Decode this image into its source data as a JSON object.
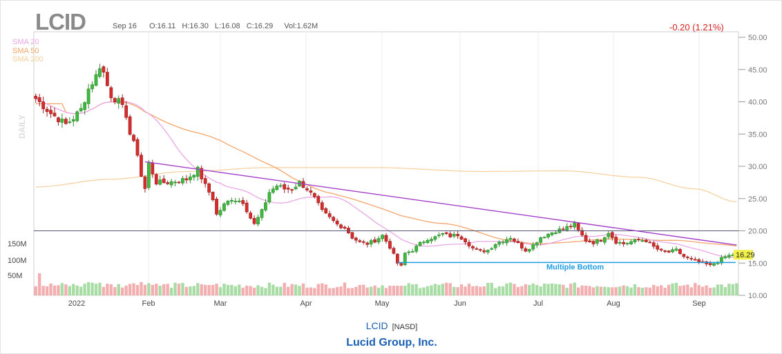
{
  "header": {
    "symbol": "LCID",
    "date": "Sep 16",
    "open": "O:16.11",
    "high": "H:16.30",
    "low": "L:16.08",
    "close": "C:16.29",
    "volume": "Vol:1.62M",
    "change": "-0.20 (1.21%)",
    "period_label": "DAILY"
  },
  "legend": [
    {
      "label": "SMA 20",
      "color": "#e9a6e6"
    },
    {
      "label": "SMA 50",
      "color": "#f4a46a"
    },
    {
      "label": "SMA 200",
      "color": "#f5cf9a"
    }
  ],
  "colors": {
    "up": "#3fb83f",
    "down": "#d62c2c",
    "trend": "#a23fc9",
    "support": "#1e9de3",
    "resistance": "#555577",
    "price_tag": "#f2f24a"
  },
  "chart_data": {
    "type": "candlestick",
    "y_ticks": [
      "50.00",
      "45.00",
      "40.00",
      "35.00",
      "30.00",
      "25.00",
      "20.00",
      "15.00",
      "10.00"
    ],
    "ylim": [
      10,
      50
    ],
    "x_ticks": [
      "2022",
      "Feb",
      "Mar",
      "Apr",
      "May",
      "Jun",
      "Jul",
      "Aug",
      "Sep"
    ],
    "volume_ticks": [
      "150M",
      "100M",
      "50M"
    ],
    "last_price": "16.29",
    "annotation": "Multiple Bottom",
    "price_anchors": [
      [
        0,
        40.5
      ],
      [
        4,
        38.2
      ],
      [
        8,
        36.5
      ],
      [
        10,
        37.5
      ],
      [
        12,
        38.8
      ],
      [
        14,
        42
      ],
      [
        16,
        44
      ],
      [
        17,
        45.6
      ],
      [
        18,
        44.5
      ],
      [
        19,
        42.5
      ],
      [
        20,
        41
      ],
      [
        22,
        40
      ],
      [
        24,
        38
      ],
      [
        25,
        35
      ],
      [
        26,
        33.5
      ],
      [
        27,
        32
      ],
      [
        28,
        28.5
      ],
      [
        29,
        26.5
      ],
      [
        30,
        30.5
      ],
      [
        31,
        29
      ],
      [
        32,
        27.5
      ],
      [
        35,
        27.5
      ],
      [
        40,
        28
      ],
      [
        43,
        29.5
      ],
      [
        45,
        27
      ],
      [
        47,
        25
      ],
      [
        48,
        22.5
      ],
      [
        50,
        24
      ],
      [
        52,
        25
      ],
      [
        55,
        24.5
      ],
      [
        57,
        22
      ],
      [
        58,
        21
      ],
      [
        60,
        23
      ],
      [
        62,
        26
      ],
      [
        64,
        27
      ],
      [
        66,
        26.5
      ],
      [
        68,
        26.5
      ],
      [
        70,
        27.5
      ],
      [
        72,
        26.5
      ],
      [
        74,
        25
      ],
      [
        76,
        23
      ],
      [
        78,
        22
      ],
      [
        80,
        21
      ],
      [
        82,
        20.5
      ],
      [
        84,
        19
      ],
      [
        86,
        18.2
      ],
      [
        88,
        18
      ],
      [
        90,
        18.5
      ],
      [
        92,
        19.3
      ],
      [
        94,
        17.5
      ],
      [
        96,
        15
      ],
      [
        97,
        14.5
      ],
      [
        98,
        16.5
      ],
      [
        100,
        17
      ],
      [
        102,
        18
      ],
      [
        104,
        18.8
      ],
      [
        106,
        19
      ],
      [
        108,
        19.5
      ],
      [
        110,
        19.2
      ],
      [
        112,
        19.4
      ],
      [
        114,
        18.5
      ],
      [
        116,
        17.3
      ],
      [
        118,
        16.8
      ],
      [
        120,
        17
      ],
      [
        122,
        18
      ],
      [
        124,
        18.5
      ],
      [
        126,
        19
      ],
      [
        128,
        18
      ],
      [
        130,
        17
      ],
      [
        132,
        17.8
      ],
      [
        134,
        19
      ],
      [
        136,
        19.5
      ],
      [
        138,
        20
      ],
      [
        140,
        20.3
      ],
      [
        142,
        20.8
      ],
      [
        143,
        21
      ],
      [
        144,
        20
      ],
      [
        146,
        18.5
      ],
      [
        148,
        18.2
      ],
      [
        150,
        18.6
      ],
      [
        152,
        19.8
      ],
      [
        154,
        18.3
      ],
      [
        156,
        18
      ],
      [
        158,
        18.3
      ],
      [
        160,
        18.6
      ],
      [
        162,
        18.5
      ],
      [
        164,
        17.5
      ],
      [
        166,
        16.8
      ],
      [
        168,
        16.7
      ],
      [
        170,
        17
      ],
      [
        172,
        16
      ],
      [
        174,
        15.5
      ],
      [
        176,
        15.2
      ],
      [
        178,
        14.8
      ],
      [
        179,
        14.6
      ],
      [
        181,
        15.3
      ],
      [
        183,
        16
      ],
      [
        185,
        16.3
      ],
      [
        186,
        16.29
      ]
    ],
    "sma200_anchors": [
      [
        0,
        26.8
      ],
      [
        20,
        28
      ],
      [
        40,
        29.2
      ],
      [
        62,
        29.8
      ],
      [
        90,
        29.8
      ],
      [
        118,
        29.2
      ],
      [
        140,
        29.3
      ],
      [
        160,
        28.3
      ],
      [
        175,
        26.5
      ],
      [
        186,
        24.5
      ]
    ],
    "trendline": {
      "start": [
        29,
        30.7
      ],
      "end": [
        186,
        17.8
      ]
    },
    "support_level": {
      "value": 15.1,
      "from_bar": 96,
      "to_bar": 186
    },
    "resistance_level": 20.0
  }
}
